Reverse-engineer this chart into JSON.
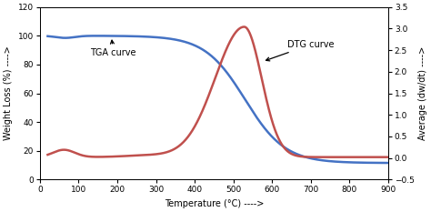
{
  "tga_color": "#4472C4",
  "dtg_color": "#C0504D",
  "background_color": "#ffffff",
  "xlabel": "Temperature (°C) ---->",
  "ylabel_left": "Weight Loss (%) ---->",
  "ylabel_right": "Average (dw/dt) ---->",
  "xlim": [
    0,
    900
  ],
  "ylim_left": [
    0,
    120
  ],
  "ylim_right": [
    -0.5,
    3.5
  ],
  "xticks": [
    0,
    100,
    200,
    300,
    400,
    500,
    600,
    700,
    800,
    900
  ],
  "yticks_left": [
    0,
    20,
    40,
    60,
    80,
    100,
    120
  ],
  "yticks_right": [
    -0.5,
    0.0,
    0.5,
    1.0,
    1.5,
    2.0,
    2.5,
    3.0,
    3.5
  ],
  "tga_label": "TGA curve",
  "dtg_label": "DTG curve",
  "tga_linewidth": 1.8,
  "dtg_linewidth": 1.8,
  "tick_fontsize": 6.5,
  "label_fontsize": 7.0,
  "annot_fontsize": 7.0
}
